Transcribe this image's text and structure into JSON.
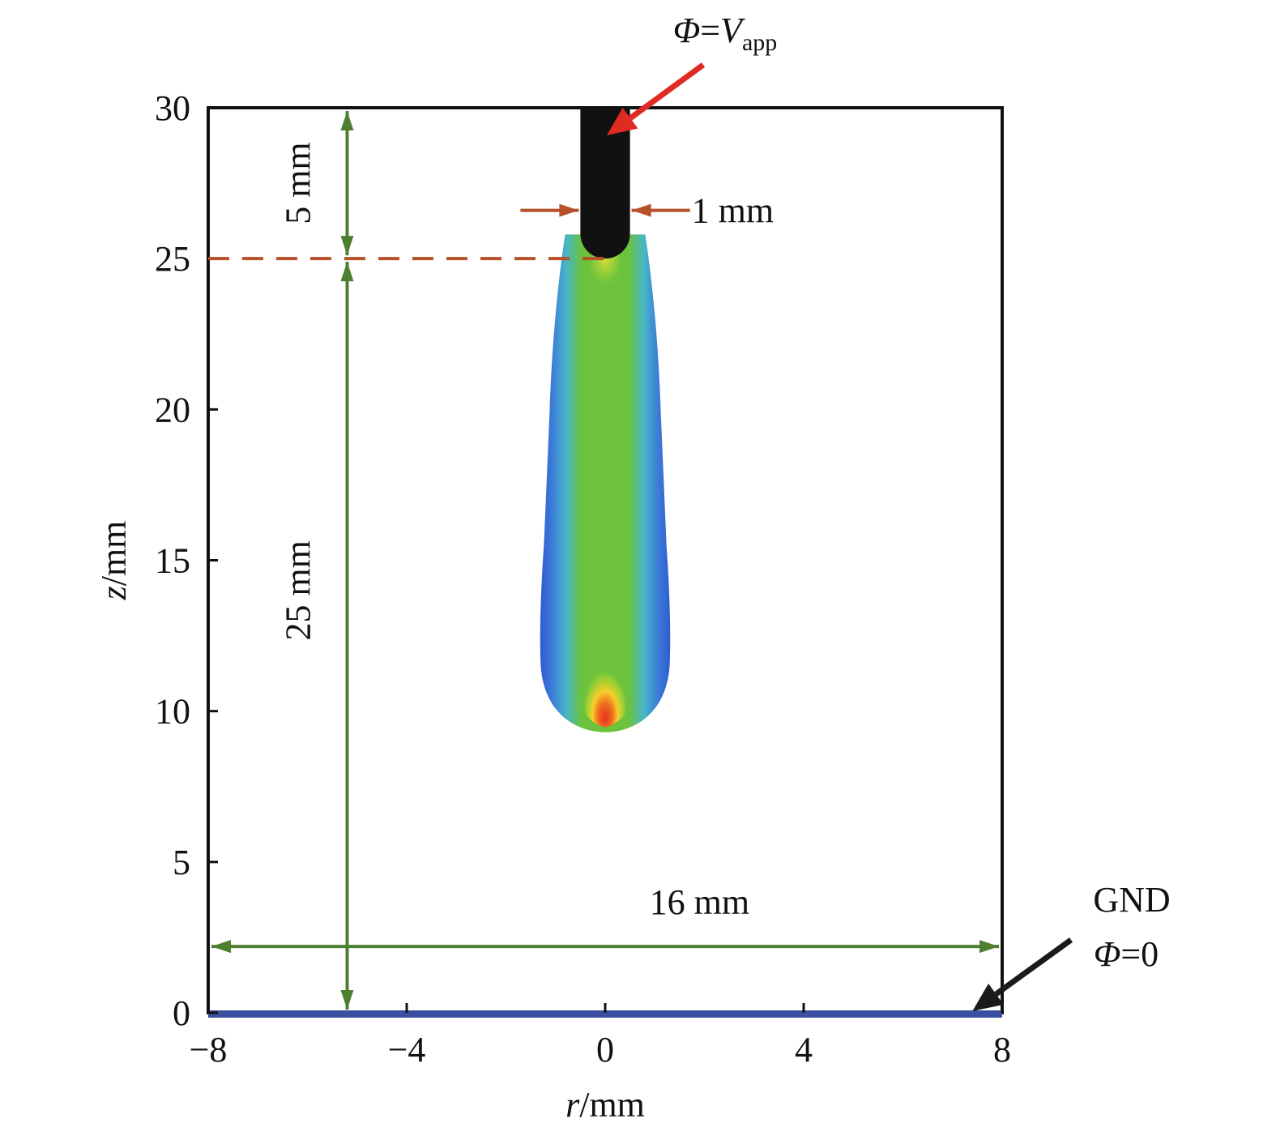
{
  "chart_data": {
    "type": "heatmap",
    "title": "",
    "xlabel": {
      "italic": "r",
      "rest": "/mm"
    },
    "ylabel": {
      "italic": "z",
      "rest": "/mm"
    },
    "xlim": [
      -8,
      8
    ],
    "ylim": [
      0,
      30
    ],
    "xticks": [
      -8,
      -4,
      0,
      4,
      8
    ],
    "xtick_labels": [
      "−8",
      "−4",
      "0",
      "4",
      "8"
    ],
    "yticks": [
      0,
      5,
      10,
      15,
      20,
      25,
      30
    ],
    "ytick_labels": [
      "0",
      "5",
      "10",
      "15",
      "20",
      "25",
      "30"
    ],
    "electrode": {
      "r_min": -0.5,
      "r_max": 0.5,
      "z_tip": 25,
      "z_top": 30,
      "width_label": "1 mm"
    },
    "discharge": {
      "z_top": 25.8,
      "z_bottom": 9.3,
      "r_half_width_max": 1.3,
      "hotspot_z": 10
    },
    "annotations": {
      "applied": {
        "phi": "Φ",
        "eq": "=",
        "v": "V",
        "sub": "app"
      },
      "gnd": {
        "line1": "GND",
        "phi": "Φ",
        "rest": "=0"
      },
      "gap_top": "5 mm",
      "gap_main": "25 mm",
      "width_total": "16 mm",
      "dashed_level_z": 25,
      "vertical_dim_r": -5.2,
      "horizontal_dim_z": 2.2
    },
    "colors": {
      "electrode": "#111111",
      "ground": "#3a4fa0",
      "dim_green": "#4e7f2f",
      "dim_brown": "#b5522a",
      "arrow_red": "#e02a24",
      "arrow_black": "#1a1a1a"
    }
  }
}
